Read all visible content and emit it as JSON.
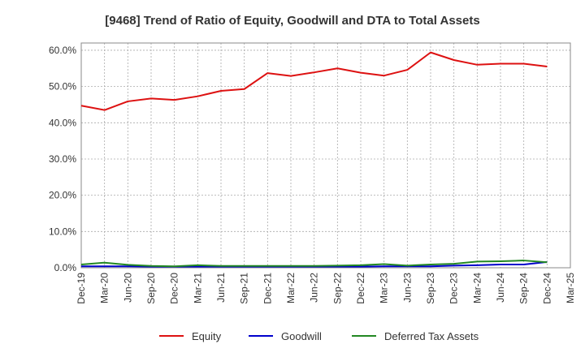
{
  "chart_data": {
    "type": "line",
    "title": "[9468]  Trend of Ratio of Equity, Goodwill and DTA to Total Assets",
    "xlabel": "",
    "ylabel": "",
    "ylim": [
      0,
      62
    ],
    "yticks": [
      "0.0%",
      "10.0%",
      "20.0%",
      "30.0%",
      "40.0%",
      "50.0%",
      "60.0%"
    ],
    "ytick_values": [
      0,
      10,
      20,
      30,
      40,
      50,
      60
    ],
    "categories": [
      "Dec-19",
      "Mar-20",
      "Jun-20",
      "Sep-20",
      "Dec-20",
      "Mar-21",
      "Jun-21",
      "Sep-21",
      "Dec-21",
      "Mar-22",
      "Jun-22",
      "Sep-22",
      "Dec-22",
      "Mar-23",
      "Jun-23",
      "Sep-23",
      "Dec-23",
      "Mar-24",
      "Jun-24",
      "Sep-24",
      "Dec-24",
      "Mar-25"
    ],
    "grid": true,
    "legend_position": "bottom",
    "series": [
      {
        "name": "Equity",
        "color": "#dd1111",
        "values": [
          44.7,
          43.5,
          45.9,
          46.7,
          46.3,
          47.3,
          48.8,
          49.3,
          53.7,
          52.9,
          53.9,
          55.0,
          53.8,
          53.0,
          54.6,
          59.4,
          57.3,
          56.0,
          56.3,
          56.3,
          55.5,
          null
        ]
      },
      {
        "name": "Goodwill",
        "color": "#0000cc",
        "values": [
          0.4,
          0.4,
          0.4,
          0.3,
          0.3,
          0.3,
          0.3,
          0.3,
          0.3,
          0.3,
          0.3,
          0.3,
          0.3,
          0.4,
          0.4,
          0.4,
          0.6,
          0.7,
          0.9,
          0.9,
          1.6,
          null
        ]
      },
      {
        "name": "Deferred Tax Assets",
        "color": "#228822",
        "values": [
          0.9,
          1.4,
          0.8,
          0.5,
          0.4,
          0.7,
          0.5,
          0.5,
          0.5,
          0.5,
          0.5,
          0.6,
          0.7,
          1.0,
          0.6,
          0.9,
          1.1,
          1.7,
          1.8,
          2.0,
          1.5,
          null
        ]
      }
    ]
  }
}
